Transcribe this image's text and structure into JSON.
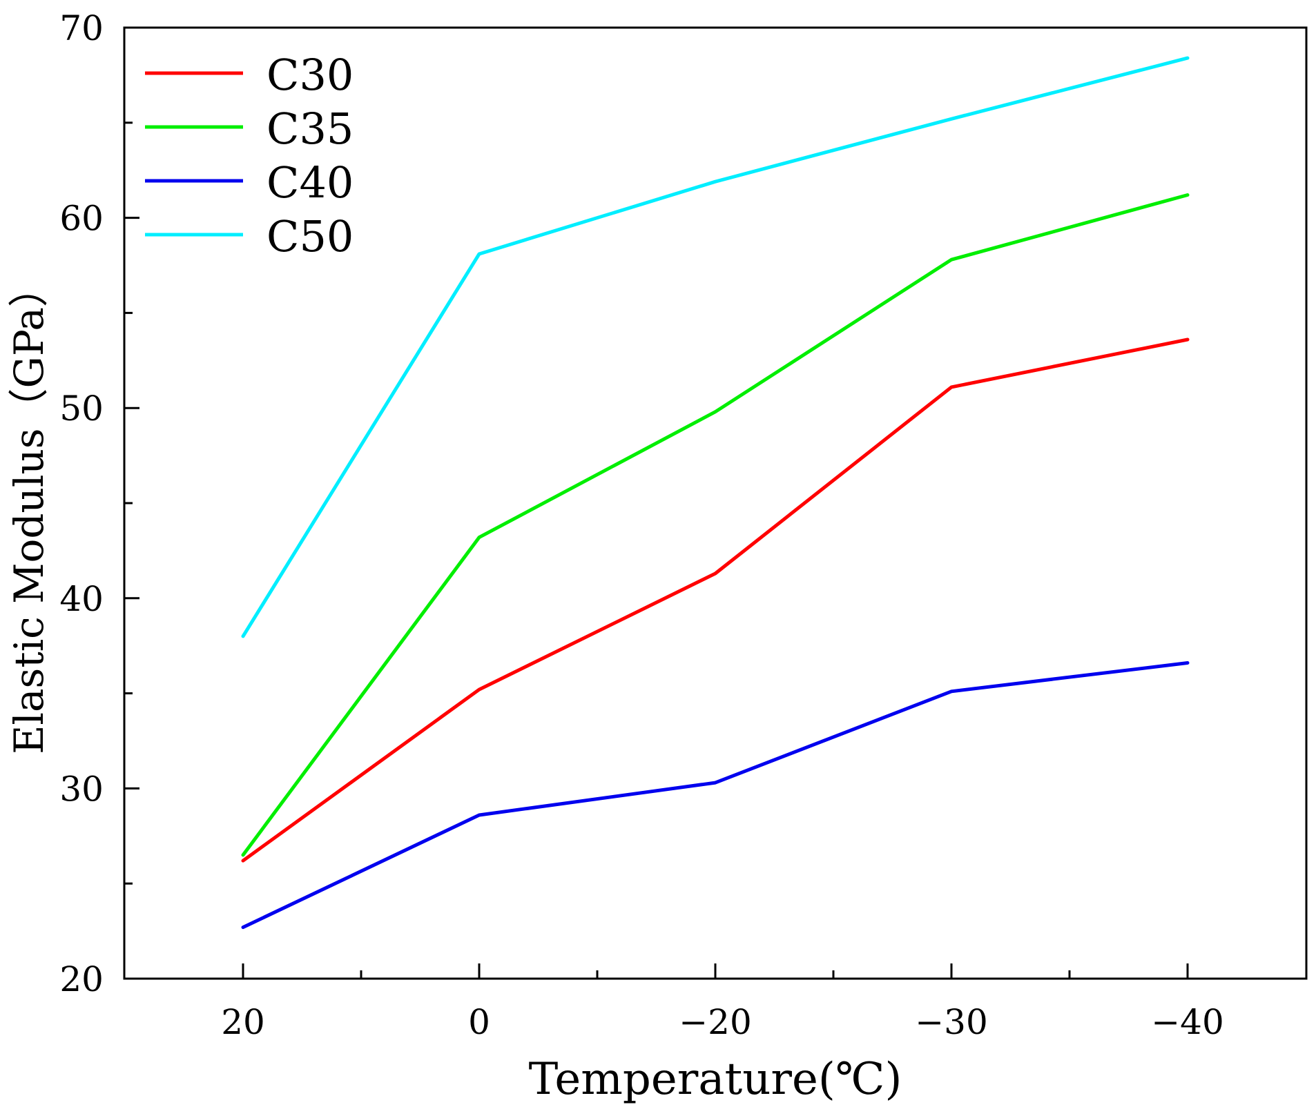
{
  "chart_data": {
    "type": "line",
    "categories": [
      "20",
      "0",
      "−20",
      "−30",
      "−40"
    ],
    "xlabel": "Temperature(℃)",
    "ylabel": "Elastic Modulus（GPa）",
    "ylim": [
      20,
      70
    ],
    "yticks": [
      "20",
      "30",
      "40",
      "50",
      "60",
      "70"
    ],
    "grid": false,
    "legend_position": "top-left",
    "series": [
      {
        "name": "C30",
        "color": "#ff0000",
        "values": [
          26.2,
          35.2,
          41.3,
          51.1,
          53.6
        ]
      },
      {
        "name": "C35",
        "color": "#00ee00",
        "values": [
          26.5,
          43.2,
          49.8,
          57.8,
          61.2
        ]
      },
      {
        "name": "C40",
        "color": "#0000ee",
        "values": [
          22.7,
          28.6,
          30.3,
          35.1,
          36.6
        ]
      },
      {
        "name": "C50",
        "color": "#00eeff",
        "values": [
          38.0,
          58.1,
          61.9,
          65.2,
          68.4
        ]
      }
    ]
  }
}
